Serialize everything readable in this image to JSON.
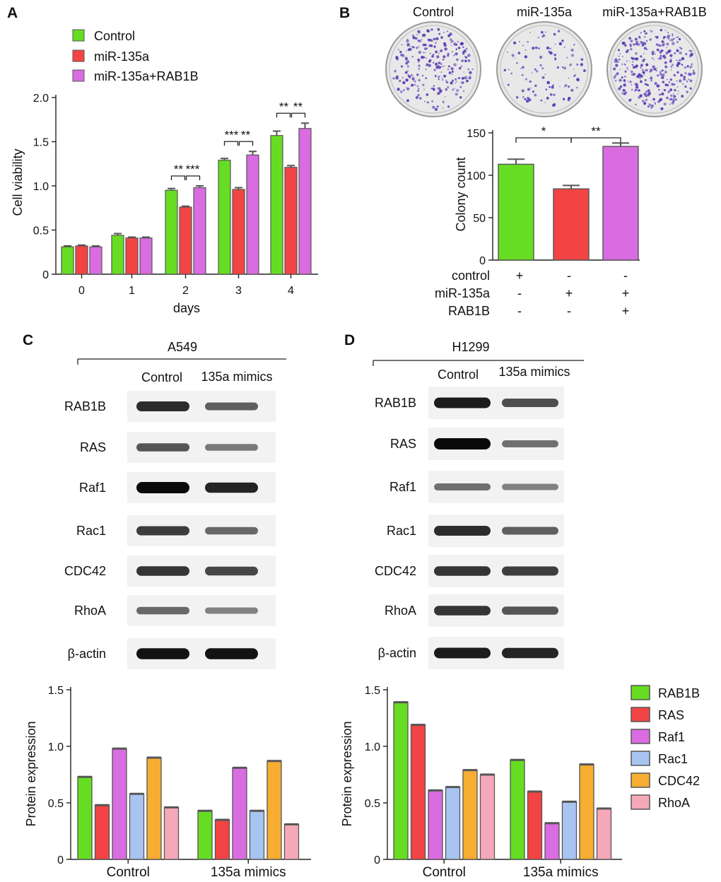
{
  "panels": {
    "A": "A",
    "B": "B",
    "C": "C",
    "D": "D"
  },
  "colors": {
    "green": "#66dd22",
    "red": "#f24444",
    "purple": "#d96ce0",
    "blue": "#a8c4f0",
    "orange": "#f6ad32",
    "pink": "#f5a8b8",
    "border": "#555555",
    "dish_fill": "#e8e8e8",
    "colony": "#5a3cb8"
  },
  "panelA": {
    "chart_data": {
      "type": "bar",
      "xlabel": "days",
      "ylabel": "Cell viability",
      "categories": [
        "0",
        "1",
        "2",
        "3",
        "4"
      ],
      "ylim": [
        0,
        2.0
      ],
      "yticks": [
        "0",
        "0.5",
        "1.0",
        "1.5",
        "2.0"
      ],
      "series": [
        {
          "name": "Control",
          "color": "green",
          "values": [
            0.31,
            0.44,
            0.95,
            1.29,
            1.57
          ],
          "errors": [
            0.01,
            0.02,
            0.02,
            0.02,
            0.05
          ]
        },
        {
          "name": "miR-135a",
          "color": "red",
          "values": [
            0.32,
            0.41,
            0.76,
            0.96,
            1.21
          ],
          "errors": [
            0.01,
            0.01,
            0.01,
            0.02,
            0.02
          ]
        },
        {
          "name": "miR-135a+RAB1B",
          "color": "purple",
          "values": [
            0.31,
            0.41,
            0.98,
            1.35,
            1.65
          ],
          "errors": [
            0.01,
            0.01,
            0.02,
            0.04,
            0.06
          ]
        }
      ],
      "significance": [
        {
          "day": 2,
          "left": "**",
          "right": "***"
        },
        {
          "day": 3,
          "left": "***",
          "right": "**"
        },
        {
          "day": 4,
          "left": "**",
          "right": "**"
        }
      ]
    }
  },
  "panelB": {
    "dish_labels": [
      "Control",
      "miR-135a",
      "miR-135a+RAB1B"
    ],
    "chart_data": {
      "type": "bar",
      "ylabel": "Colony count",
      "categories": [
        "Control",
        "miR-135a",
        "miR-135a+RAB1B"
      ],
      "values": [
        113,
        84,
        134
      ],
      "errors": [
        6,
        4,
        4
      ],
      "colors": [
        "green",
        "red",
        "purple"
      ],
      "ylim": [
        0,
        150
      ],
      "yticks": [
        "0",
        "50",
        "100",
        "150"
      ],
      "significance": [
        {
          "from": 0,
          "to": 1,
          "label": "*"
        },
        {
          "from": 1,
          "to": 2,
          "label": "**"
        }
      ]
    },
    "condition_table": [
      {
        "name": "control",
        "signs": [
          "+",
          "-",
          "-"
        ]
      },
      {
        "name": "miR-135a",
        "signs": [
          "-",
          "+",
          "+"
        ]
      },
      {
        "name": "RAB1B",
        "signs": [
          "-",
          "-",
          "+"
        ]
      }
    ]
  },
  "panelC": {
    "cell_line": "A549",
    "columns": [
      "Control",
      "135a mimics"
    ],
    "blots": [
      "RAB1B",
      "RAS",
      "Raf1",
      "Rac1",
      "CDC42",
      "RhoA",
      "β-actin"
    ],
    "band_intensity": [
      [
        0.8,
        0.5
      ],
      [
        0.55,
        0.35
      ],
      [
        1.0,
        0.85
      ],
      [
        0.7,
        0.45
      ],
      [
        0.75,
        0.65
      ],
      [
        0.45,
        0.3
      ],
      [
        0.95,
        0.95
      ]
    ],
    "chart_data": {
      "type": "bar",
      "ylabel": "Protein expression",
      "categories": [
        "Control",
        "135a mimics"
      ],
      "ylim": [
        0,
        1.5
      ],
      "yticks": [
        "0",
        "0.5",
        "1.0",
        "1.5"
      ],
      "series": [
        {
          "name": "RAB1B",
          "color": "green",
          "values": [
            0.73,
            0.43
          ]
        },
        {
          "name": "RAS",
          "color": "red",
          "values": [
            0.48,
            0.35
          ]
        },
        {
          "name": "Raf1",
          "color": "purple",
          "values": [
            0.98,
            0.81
          ]
        },
        {
          "name": "Rac1",
          "color": "blue",
          "values": [
            0.58,
            0.43
          ]
        },
        {
          "name": "CDC42",
          "color": "orange",
          "values": [
            0.9,
            0.87
          ]
        },
        {
          "name": "RhoA",
          "color": "pink",
          "values": [
            0.46,
            0.31
          ]
        }
      ]
    }
  },
  "panelD": {
    "cell_line": "H1299",
    "columns": [
      "Control",
      "135a mimics"
    ],
    "blots": [
      "RAB1B",
      "RAS",
      "Raf1",
      "Rac1",
      "CDC42",
      "RhoA",
      "β-actin"
    ],
    "band_intensity": [
      [
        0.9,
        0.6
      ],
      [
        1.0,
        0.4
      ],
      [
        0.4,
        0.3
      ],
      [
        0.8,
        0.5
      ],
      [
        0.75,
        0.7
      ],
      [
        0.75,
        0.55
      ],
      [
        0.9,
        0.85
      ]
    ],
    "chart_data": {
      "type": "bar",
      "ylabel": "Protein expression",
      "categories": [
        "Control",
        "135a mimics"
      ],
      "ylim": [
        0,
        1.5
      ],
      "yticks": [
        "0",
        "0.5",
        "1.0",
        "1.5"
      ],
      "series": [
        {
          "name": "RAB1B",
          "color": "green",
          "values": [
            1.39,
            0.88
          ]
        },
        {
          "name": "RAS",
          "color": "red",
          "values": [
            1.19,
            0.6
          ]
        },
        {
          "name": "Raf1",
          "color": "purple",
          "values": [
            0.61,
            0.32
          ]
        },
        {
          "name": "Rac1",
          "color": "blue",
          "values": [
            0.64,
            0.51
          ]
        },
        {
          "name": "CDC42",
          "color": "orange",
          "values": [
            0.79,
            0.84
          ]
        },
        {
          "name": "RhoA",
          "color": "pink",
          "values": [
            0.75,
            0.45
          ]
        }
      ]
    },
    "legend": [
      "RAB1B",
      "RAS",
      "Raf1",
      "Rac1",
      "CDC42",
      "RhoA"
    ]
  }
}
